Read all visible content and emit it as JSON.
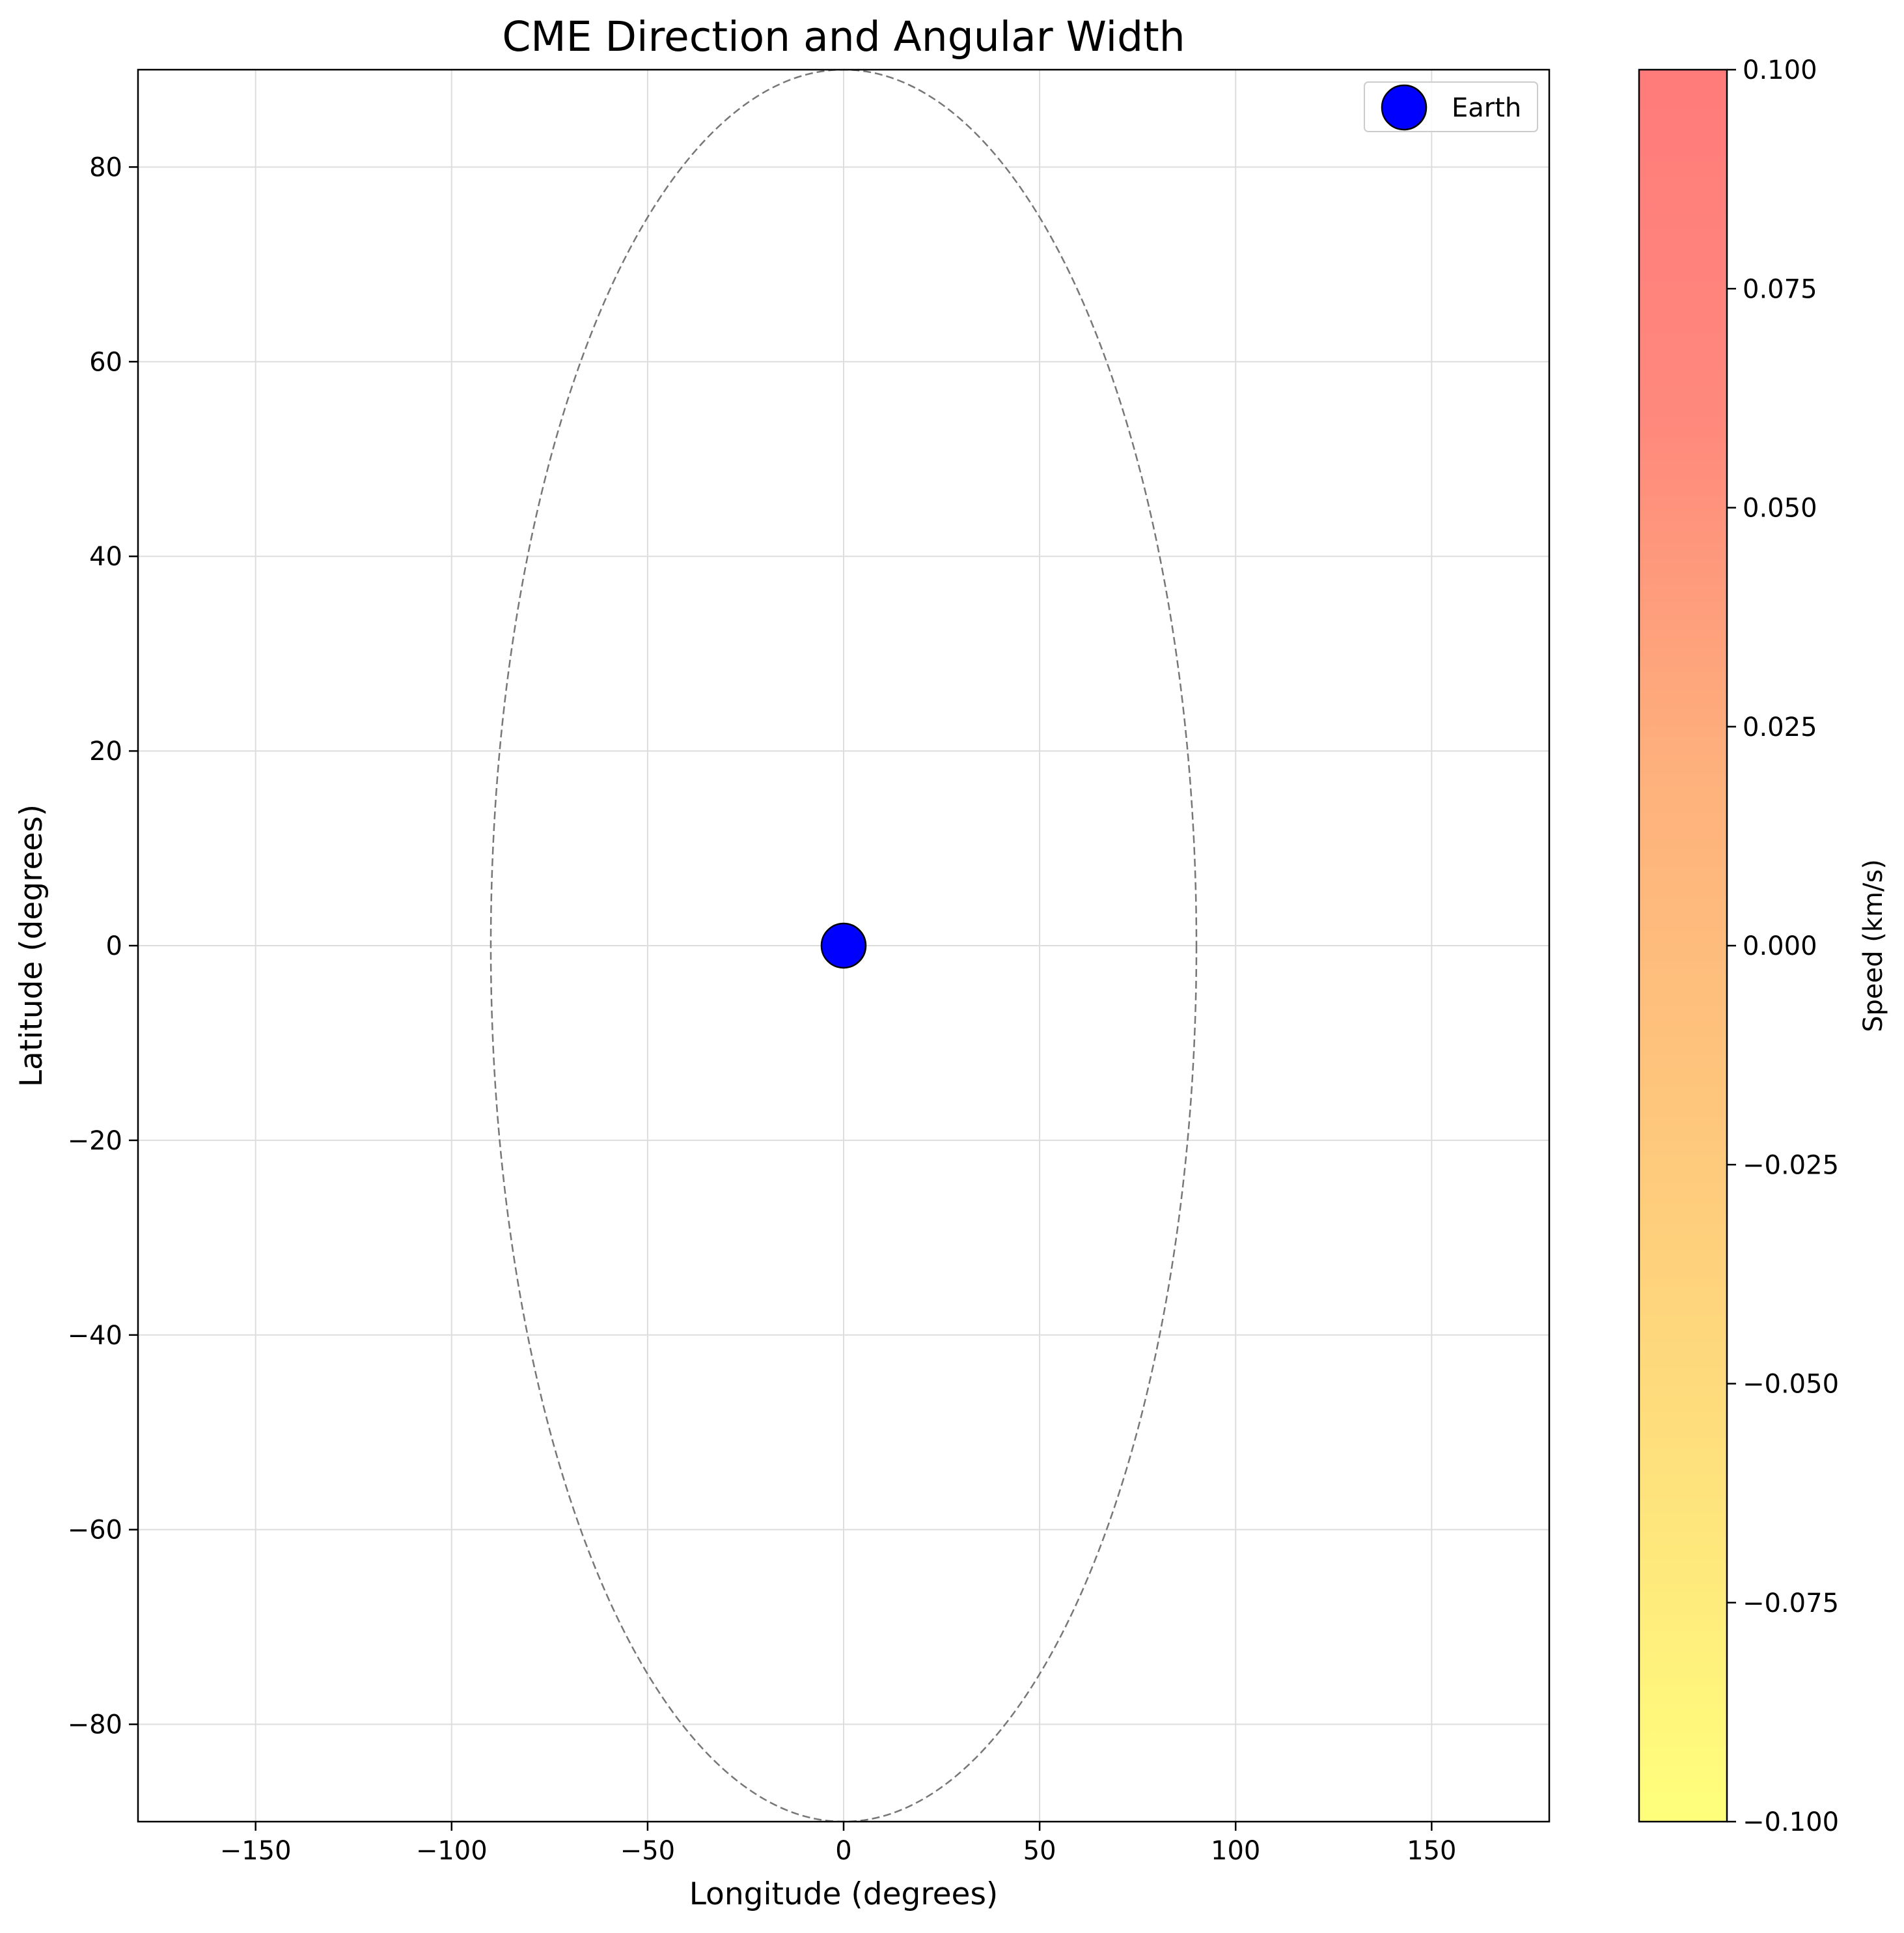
{
  "chart_data": {
    "type": "scatter",
    "title": "CME Direction and Angular Width",
    "xlabel": "Longitude (degrees)",
    "ylabel": "Latitude (degrees)",
    "xlim": [
      -180,
      180
    ],
    "ylim": [
      -90,
      90
    ],
    "xticks": [
      -150,
      -100,
      -50,
      0,
      50,
      100,
      150
    ],
    "xtick_labels": [
      "−150",
      "−100",
      "−50",
      "0",
      "50",
      "100",
      "150"
    ],
    "yticks": [
      -80,
      -60,
      -40,
      -20,
      0,
      20,
      40,
      60,
      80
    ],
    "ytick_labels": [
      "−80",
      "−60",
      "−40",
      "−20",
      "0",
      "20",
      "40",
      "60",
      "80"
    ],
    "grid": true,
    "series": [
      {
        "name": "Earth",
        "marker": "circle",
        "color": "#0000ff",
        "edge_color": "#000000",
        "points": [
          {
            "x": 0,
            "y": 0
          }
        ]
      }
    ],
    "annotations": [
      {
        "kind": "dashed-ellipse",
        "center": [
          0,
          0
        ],
        "half_width_x": 90,
        "half_height_y": 90,
        "color": "#777777"
      }
    ],
    "legend": {
      "placement": "top-right",
      "entries": [
        "Earth"
      ]
    },
    "colorbar": {
      "label": "Speed (km/s)",
      "range": [
        -0.1,
        0.1
      ],
      "ticks": [
        0.1,
        0.075,
        0.05,
        0.025,
        0.0,
        -0.025,
        -0.05,
        -0.075,
        -0.1
      ],
      "tick_labels": [
        "0.100",
        "0.075",
        "0.050",
        "0.025",
        "0.000",
        "−0.025",
        "−0.050",
        "−0.075",
        "−0.100"
      ],
      "colormap": [
        "#ffff50",
        "#fed750",
        "#feb450",
        "#fd9650",
        "#ff6150",
        "#ff4f4f"
      ]
    }
  }
}
